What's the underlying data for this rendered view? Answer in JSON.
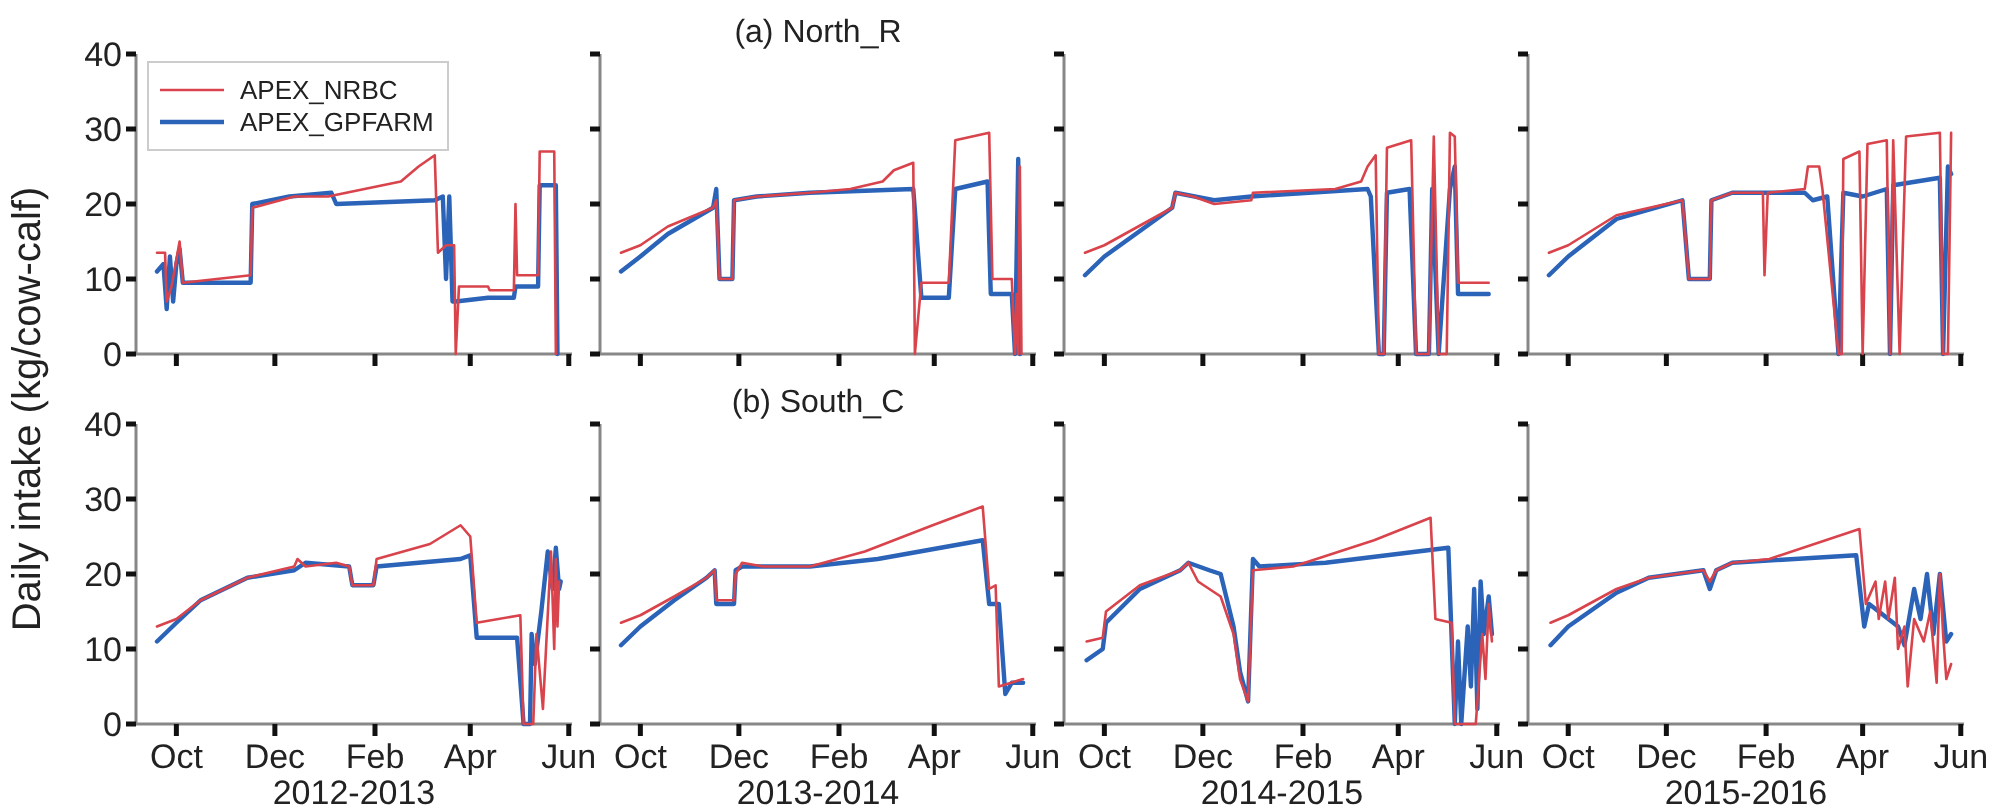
{
  "chart_data": [
    {
      "type": "line",
      "ylabel": "Daily intake (kg/cow-calf)",
      "legend": "top left",
      "tick_labels": "y",
      "xlim": [
        "2012-09-06",
        "2013-06-03"
      ],
      "ylim": [
        0,
        40
      ],
      "yticks": [
        0,
        10,
        20,
        30,
        40
      ],
      "xticks": [
        {
          "value": "2012-10-01",
          "label": null
        },
        {
          "value": "2012-12-01",
          "label": null
        },
        {
          "value": "2013-02-01",
          "label": null
        },
        {
          "value": "2013-04-01",
          "label": null
        },
        {
          "value": "2013-06-01",
          "label": null
        }
      ],
      "series": [
        {
          "name": "APEX_NRBC",
          "color": "#d9434b",
          "x": [
            "2012-09-19",
            "2012-09-24",
            "2012-09-25",
            "2012-09-28",
            "2012-10-03",
            "2012-10-05",
            "2012-11-16",
            "2012-11-17",
            "2012-12-13",
            "2013-01-03",
            "2013-02-17",
            "2013-02-28",
            "2013-03-10",
            "2013-03-12",
            "2013-03-17",
            "2013-03-22",
            "2013-03-23",
            "2013-03-25",
            "2013-04-12",
            "2013-04-13",
            "2013-04-28",
            "2013-04-29",
            "2013-04-30",
            "2013-05-13",
            "2013-05-14",
            "2013-05-23",
            "2013-05-24"
          ],
          "values": [
            13.5,
            13.5,
            7,
            9,
            15,
            9.5,
            10.5,
            19.5,
            21,
            21,
            23,
            25,
            26.5,
            13.5,
            14.5,
            14.5,
            0,
            9,
            9,
            8.5,
            8.5,
            20,
            10.5,
            10.5,
            27,
            27,
            0
          ]
        },
        {
          "name": "APEX_GPFARM",
          "color": "#2a63b8",
          "x": [
            "2012-09-19",
            "2012-09-23",
            "2012-09-25",
            "2012-09-27",
            "2012-09-29",
            "2012-10-01",
            "2012-10-03",
            "2012-10-05",
            "2012-11-16",
            "2012-11-17",
            "2012-12-10",
            "2013-01-05",
            "2013-01-08",
            "2013-03-10",
            "2013-03-15",
            "2013-03-17",
            "2013-03-19",
            "2013-03-21",
            "2013-03-23",
            "2013-04-12",
            "2013-04-28",
            "2013-04-29",
            "2013-05-13",
            "2013-05-14",
            "2013-05-24",
            "2013-05-25"
          ],
          "values": [
            11,
            12,
            6,
            13,
            7,
            12,
            14,
            9.5,
            9.5,
            20,
            21,
            21.5,
            20,
            20.5,
            21,
            10,
            21,
            7,
            7,
            7.5,
            7.5,
            9,
            9,
            22.5,
            22.5,
            0
          ]
        }
      ]
    },
    {
      "type": "line",
      "title": "(a) North_R",
      "tick_labels": false,
      "xlim": [
        "2013-09-06",
        "2014-06-03"
      ],
      "ylim": [
        0,
        40
      ],
      "yticks": [
        0,
        10,
        20,
        30,
        40
      ],
      "xticks": [
        {
          "value": "2013-10-01",
          "label": null
        },
        {
          "value": "2013-12-01",
          "label": null
        },
        {
          "value": "2014-02-01",
          "label": null
        },
        {
          "value": "2014-04-01",
          "label": null
        },
        {
          "value": "2014-06-01",
          "label": null
        }
      ],
      "series": [
        {
          "color": "#d9434b",
          "x": [
            "2013-09-19",
            "2013-10-01",
            "2013-10-18",
            "2013-11-15",
            "2013-11-17",
            "2013-11-19",
            "2013-11-27",
            "2013-11-28",
            "2013-12-12",
            "2014-01-14",
            "2014-02-08",
            "2014-02-28",
            "2014-03-07",
            "2014-03-19",
            "2014-03-20",
            "2014-03-24",
            "2014-04-10",
            "2014-04-14",
            "2014-05-05",
            "2014-05-07",
            "2014-05-19",
            "2014-05-21",
            "2014-05-22",
            "2014-05-23",
            "2014-05-24",
            "2014-05-25"
          ],
          "values": [
            13.5,
            14.5,
            17,
            19.5,
            20.5,
            10,
            10,
            20.5,
            21,
            21.5,
            22,
            23,
            24.5,
            25.5,
            0,
            9.5,
            9.5,
            28.5,
            29.5,
            10,
            10,
            0,
            8,
            0,
            25,
            0
          ]
        },
        {
          "color": "#2a63b8",
          "x": [
            "2013-09-19",
            "2013-10-01",
            "2013-10-18",
            "2013-11-15",
            "2013-11-17",
            "2013-11-19",
            "2013-11-27",
            "2013-11-28",
            "2013-12-12",
            "2014-01-14",
            "2014-03-19",
            "2014-03-24",
            "2014-04-10",
            "2014-04-14",
            "2014-05-04",
            "2014-05-06",
            "2014-05-19",
            "2014-05-21",
            "2014-05-23",
            "2014-05-24"
          ],
          "values": [
            11,
            13,
            16,
            19.5,
            22,
            10,
            10,
            20.5,
            21,
            21.5,
            22,
            7.5,
            7.5,
            22,
            23,
            8,
            8,
            0,
            26,
            0
          ]
        }
      ]
    },
    {
      "type": "line",
      "tick_labels": false,
      "xlim": [
        "2014-09-06",
        "2015-06-03"
      ],
      "ylim": [
        0,
        40
      ],
      "yticks": [
        0,
        10,
        20,
        30,
        40
      ],
      "xticks": [
        {
          "value": "2014-10-01",
          "label": null
        },
        {
          "value": "2014-12-01",
          "label": null
        },
        {
          "value": "2015-02-01",
          "label": null
        },
        {
          "value": "2015-04-01",
          "label": null
        },
        {
          "value": "2015-06-01",
          "label": null
        }
      ],
      "series": [
        {
          "color": "#d9434b",
          "x": [
            "2014-09-19",
            "2014-10-01",
            "2014-11-12",
            "2014-11-14",
            "2014-11-25",
            "2014-12-08",
            "2014-12-31",
            "2015-01-01",
            "2015-02-21",
            "2015-03-09",
            "2015-03-13",
            "2015-03-18",
            "2015-03-20",
            "2015-03-23",
            "2015-03-25",
            "2015-04-09",
            "2015-04-12",
            "2015-04-20",
            "2015-04-23",
            "2015-04-26",
            "2015-05-01",
            "2015-05-03",
            "2015-05-06",
            "2015-05-08",
            "2015-05-27"
          ],
          "values": [
            13.5,
            14.5,
            19.5,
            21.5,
            21,
            20,
            20.5,
            21.5,
            22,
            23,
            25,
            26.5,
            0,
            0,
            27.5,
            28.5,
            0,
            0,
            29,
            0,
            0,
            29.5,
            29,
            9.5,
            9.5
          ]
        },
        {
          "color": "#2a63b8",
          "x": [
            "2014-09-19",
            "2014-10-01",
            "2014-11-12",
            "2014-11-14",
            "2014-12-08",
            "2014-12-31",
            "2015-03-13",
            "2015-03-15",
            "2015-03-20",
            "2015-03-23",
            "2015-03-25",
            "2015-04-08",
            "2015-04-12",
            "2015-04-20",
            "2015-04-22",
            "2015-04-26",
            "2015-05-03",
            "2015-05-06",
            "2015-05-08",
            "2015-05-27"
          ],
          "values": [
            10.5,
            13,
            19.5,
            21.5,
            20.5,
            21,
            22,
            21,
            0,
            0,
            21.5,
            22,
            0,
            0,
            22,
            0,
            22,
            25,
            8,
            8
          ]
        }
      ]
    },
    {
      "type": "line",
      "tick_labels": false,
      "xlim": [
        "2015-09-06",
        "2016-06-03"
      ],
      "ylim": [
        0,
        40
      ],
      "yticks": [
        0,
        10,
        20,
        30,
        40
      ],
      "xticks": [
        {
          "value": "2015-10-01",
          "label": null
        },
        {
          "value": "2015-12-01",
          "label": null
        },
        {
          "value": "2016-02-01",
          "label": null
        },
        {
          "value": "2016-04-01",
          "label": null
        },
        {
          "value": "2016-06-01",
          "label": null
        }
      ],
      "series": [
        {
          "color": "#d9434b",
          "x": [
            "2015-09-19",
            "2015-10-01",
            "2015-10-31",
            "2015-12-11",
            "2015-12-15",
            "2015-12-28",
            "2015-12-29",
            "2016-01-11",
            "2016-01-30",
            "2016-01-31",
            "2016-02-02",
            "2016-02-25",
            "2016-02-27",
            "2016-03-05",
            "2016-03-07",
            "2016-03-17",
            "2016-03-19",
            "2016-03-20",
            "2016-03-30",
            "2016-04-01",
            "2016-04-04",
            "2016-04-16",
            "2016-04-18",
            "2016-04-20",
            "2016-04-24",
            "2016-04-28",
            "2016-05-19",
            "2016-05-21",
            "2016-05-24",
            "2016-05-26"
          ],
          "values": [
            13.5,
            14.5,
            18.5,
            20.5,
            10,
            10,
            20.5,
            21.5,
            21.5,
            10.5,
            21.5,
            22,
            25,
            25,
            22,
            0,
            0,
            26,
            27,
            0,
            28,
            28.5,
            0,
            28.5,
            0,
            29,
            29.5,
            0,
            0,
            29.5
          ]
        },
        {
          "color": "#2a63b8",
          "x": [
            "2015-09-19",
            "2015-10-01",
            "2015-10-31",
            "2015-12-11",
            "2015-12-15",
            "2015-12-28",
            "2015-12-29",
            "2016-01-11",
            "2016-02-25",
            "2016-03-01",
            "2016-03-10",
            "2016-03-17",
            "2016-03-20",
            "2016-04-01",
            "2016-04-16",
            "2016-04-18",
            "2016-04-20",
            "2016-05-19",
            "2016-05-21",
            "2016-05-24",
            "2016-05-26"
          ],
          "values": [
            10.5,
            13,
            18,
            20.5,
            10,
            10,
            20.5,
            21.5,
            21.5,
            20.5,
            21,
            0,
            21.5,
            21,
            22,
            0,
            22.5,
            23.5,
            0,
            25,
            24
          ]
        }
      ]
    },
    {
      "type": "line",
      "xlabel": "2012-2013",
      "xlim": [
        "2012-09-06",
        "2013-06-03"
      ],
      "ylim": [
        0,
        40
      ],
      "yticks": [
        0,
        10,
        20,
        30,
        40
      ],
      "xticks": [
        {
          "value": "2012-10-01",
          "label": "Oct"
        },
        {
          "value": "2012-12-01",
          "label": "Dec"
        },
        {
          "value": "2013-02-01",
          "label": "Feb"
        },
        {
          "value": "2013-04-01",
          "label": "Apr"
        },
        {
          "value": "2013-06-01",
          "label": "Jun"
        }
      ],
      "series": [
        {
          "color": "#d9434b",
          "x": [
            "2012-09-19",
            "2012-10-01",
            "2012-10-16",
            "2012-11-14",
            "2012-12-13",
            "2012-12-15",
            "2012-12-20",
            "2013-01-08",
            "2013-01-16",
            "2013-01-18",
            "2013-01-31",
            "2013-02-02",
            "2013-03-07",
            "2013-03-26",
            "2013-04-01",
            "2013-04-05",
            "2013-05-02",
            "2013-05-04",
            "2013-05-10",
            "2013-05-12",
            "2013-05-16",
            "2013-05-21",
            "2013-05-23",
            "2013-05-24",
            "2013-05-25",
            "2013-05-26"
          ],
          "values": [
            13,
            14,
            16.5,
            19.5,
            21,
            22,
            21,
            21.5,
            21,
            18.5,
            18.5,
            22,
            24,
            26.5,
            25,
            13.5,
            14.5,
            0,
            0,
            12,
            2,
            23,
            10,
            22,
            13,
            19
          ]
        },
        {
          "color": "#2a63b8",
          "x": [
            "2012-09-19",
            "2012-10-01",
            "2012-10-16",
            "2012-11-14",
            "2012-12-13",
            "2012-12-20",
            "2013-01-16",
            "2013-01-18",
            "2013-01-31",
            "2013-02-02",
            "2013-03-26",
            "2013-04-01",
            "2013-04-05",
            "2013-04-30",
            "2013-05-04",
            "2013-05-08",
            "2013-05-09",
            "2013-05-11",
            "2013-05-15",
            "2013-05-19",
            "2013-05-22",
            "2013-05-24",
            "2013-05-26",
            "2013-05-27"
          ],
          "values": [
            11,
            13.5,
            16.5,
            19.5,
            20.5,
            21.5,
            21,
            18.5,
            18.5,
            21,
            22,
            22.5,
            11.5,
            11.5,
            0,
            0,
            12,
            8,
            15,
            23,
            18,
            23.5,
            18,
            19
          ]
        }
      ]
    },
    {
      "type": "line",
      "title": "(b) South_C",
      "xlabel": "2013-2014",
      "tick_labels": "x",
      "xlim": [
        "2013-09-06",
        "2014-06-03"
      ],
      "ylim": [
        0,
        40
      ],
      "yticks": [
        0,
        10,
        20,
        30,
        40
      ],
      "xticks": [
        {
          "value": "2013-10-01",
          "label": "Oct"
        },
        {
          "value": "2013-12-01",
          "label": "Dec"
        },
        {
          "value": "2014-02-01",
          "label": "Feb"
        },
        {
          "value": "2014-04-01",
          "label": "Apr"
        },
        {
          "value": "2014-06-01",
          "label": "Jun"
        }
      ],
      "series": [
        {
          "color": "#d9434b",
          "x": [
            "2013-09-19",
            "2013-10-01",
            "2013-10-22",
            "2013-11-11",
            "2013-11-16",
            "2013-11-17",
            "2013-11-28",
            "2013-11-29",
            "2013-12-03",
            "2013-12-16",
            "2014-01-14",
            "2014-02-17",
            "2014-03-31",
            "2014-05-01",
            "2014-05-05",
            "2014-05-09",
            "2014-05-11",
            "2014-05-26"
          ],
          "values": [
            13.5,
            14.5,
            17,
            19.5,
            20.5,
            16.5,
            16.5,
            20,
            21.5,
            21,
            21,
            23,
            26.5,
            29,
            18,
            18.5,
            5,
            6
          ]
        },
        {
          "color": "#2a63b8",
          "x": [
            "2013-09-19",
            "2013-10-01",
            "2013-10-22",
            "2013-11-11",
            "2013-11-16",
            "2013-11-17",
            "2013-11-28",
            "2013-11-29",
            "2013-12-03",
            "2014-01-14",
            "2014-02-25",
            "2014-05-01",
            "2014-05-05",
            "2014-05-11",
            "2014-05-15",
            "2014-05-19",
            "2014-05-26"
          ],
          "values": [
            10.5,
            13,
            16.5,
            19.5,
            20.5,
            16,
            16,
            20.5,
            21,
            21,
            22,
            24.5,
            16,
            16,
            4,
            5.5,
            5.5
          ]
        }
      ]
    },
    {
      "type": "line",
      "xlabel": "2014-2015",
      "tick_labels": "x",
      "xlim": [
        "2014-09-06",
        "2015-06-03"
      ],
      "ylim": [
        0,
        40
      ],
      "yticks": [
        0,
        10,
        20,
        30,
        40
      ],
      "xticks": [
        {
          "value": "2014-10-01",
          "label": "Oct"
        },
        {
          "value": "2014-12-01",
          "label": "Dec"
        },
        {
          "value": "2015-02-01",
          "label": "Feb"
        },
        {
          "value": "2015-04-01",
          "label": "Apr"
        },
        {
          "value": "2015-06-01",
          "label": "Jun"
        }
      ],
      "series": [
        {
          "color": "#d9434b",
          "x": [
            "2014-09-20",
            "2014-09-30",
            "2014-10-02",
            "2014-10-23",
            "2014-11-17",
            "2014-11-22",
            "2014-11-28",
            "2014-12-12",
            "2014-12-20",
            "2014-12-24",
            "2014-12-29",
            "2015-01-01",
            "2015-01-26",
            "2015-03-17",
            "2015-04-21",
            "2015-04-24",
            "2015-05-04",
            "2015-05-06",
            "2015-05-19",
            "2015-05-23",
            "2015-05-25",
            "2015-05-27",
            "2015-05-29"
          ],
          "values": [
            11,
            11.5,
            15,
            18.5,
            20.5,
            21.5,
            19,
            17,
            12,
            6,
            3,
            20.5,
            21,
            24.5,
            27.5,
            14,
            13.5,
            0,
            0,
            12,
            6,
            16,
            11
          ]
        },
        {
          "color": "#2a63b8",
          "x": [
            "2014-09-20",
            "2014-09-30",
            "2014-10-02",
            "2014-10-23",
            "2014-11-17",
            "2014-11-22",
            "2014-12-05",
            "2014-12-12",
            "2014-12-20",
            "2014-12-24",
            "2014-12-29",
            "2015-01-01",
            "2015-01-05",
            "2015-02-15",
            "2015-05-02",
            "2015-05-06",
            "2015-05-08",
            "2015-05-10",
            "2015-05-14",
            "2015-05-16",
            "2015-05-18",
            "2015-05-20",
            "2015-05-22",
            "2015-05-24",
            "2015-05-27",
            "2015-05-29"
          ],
          "values": [
            8.5,
            10,
            13.5,
            18,
            20.5,
            21.5,
            20.5,
            20,
            13,
            7,
            3,
            22,
            21,
            21.5,
            23.5,
            0,
            11,
            0,
            13,
            5,
            18,
            2,
            19,
            12,
            17,
            12
          ]
        }
      ]
    },
    {
      "type": "line",
      "xlabel": "2015-2016",
      "tick_labels": "x",
      "xlim": [
        "2015-09-06",
        "2016-06-03"
      ],
      "ylim": [
        0,
        40
      ],
      "yticks": [
        0,
        10,
        20,
        30,
        40
      ],
      "xticks": [
        {
          "value": "2015-10-01",
          "label": "Oct"
        },
        {
          "value": "2015-12-01",
          "label": "Dec"
        },
        {
          "value": "2016-02-01",
          "label": "Feb"
        },
        {
          "value": "2016-04-01",
          "label": "Apr"
        },
        {
          "value": "2016-06-01",
          "label": "Jun"
        }
      ],
      "series": [
        {
          "color": "#d9434b",
          "x": [
            "2015-09-20",
            "2015-10-01",
            "2015-10-31",
            "2015-11-20",
            "2015-12-24",
            "2015-12-28",
            "2016-01-01",
            "2016-01-11",
            "2016-02-03",
            "2016-03-30",
            "2016-04-03",
            "2016-04-09",
            "2016-04-11",
            "2016-04-15",
            "2016-04-17",
            "2016-04-21",
            "2016-04-23",
            "2016-04-27",
            "2016-04-29",
            "2016-05-03",
            "2016-05-09",
            "2016-05-13",
            "2016-05-17",
            "2016-05-19",
            "2016-05-21",
            "2016-05-23",
            "2016-05-26"
          ],
          "values": [
            13.5,
            14.5,
            18,
            19.5,
            20.5,
            19,
            20.5,
            21.5,
            22,
            26,
            16,
            19,
            14,
            19,
            14,
            19.5,
            10,
            13,
            5,
            14,
            11,
            15,
            5.5,
            20,
            12,
            6,
            8
          ]
        },
        {
          "color": "#2a63b8",
          "x": [
            "2015-09-20",
            "2015-10-01",
            "2015-10-31",
            "2015-11-20",
            "2015-12-24",
            "2015-12-28",
            "2016-01-01",
            "2016-01-11",
            "2016-03-28",
            "2016-04-02",
            "2016-04-05",
            "2016-04-23",
            "2016-04-27",
            "2016-05-03",
            "2016-05-07",
            "2016-05-11",
            "2016-05-15",
            "2016-05-19",
            "2016-05-23",
            "2016-05-26"
          ],
          "values": [
            10.5,
            13,
            17.5,
            19.5,
            20.5,
            18,
            20.5,
            21.5,
            22.5,
            13,
            16,
            13,
            10.5,
            18,
            14,
            20,
            12,
            20,
            11,
            12
          ]
        }
      ]
    }
  ]
}
